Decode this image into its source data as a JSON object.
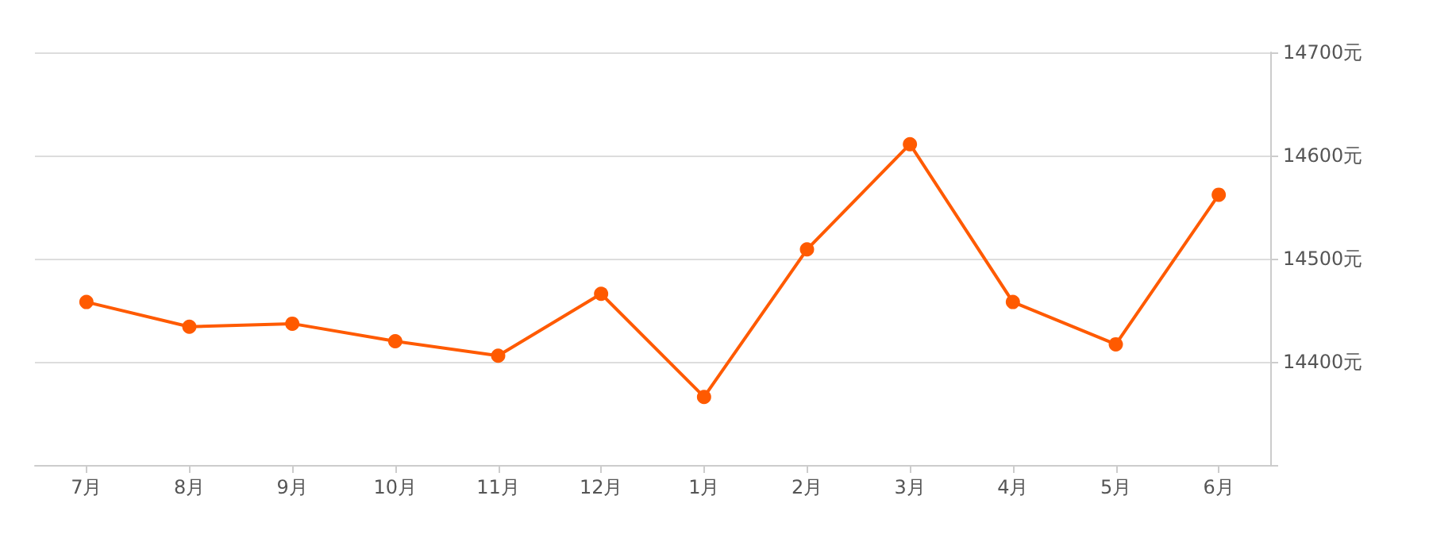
{
  "chart_data": {
    "type": "line",
    "categories": [
      "7月",
      "8月",
      "9月",
      "10月",
      "11月",
      "12月",
      "1月",
      "2月",
      "3月",
      "4月",
      "5月",
      "6月"
    ],
    "series": [
      {
        "color": "#ff5a00",
        "values": [
          14458,
          14434,
          14437,
          14420,
          14406,
          14466,
          14366,
          14509,
          14611,
          14458,
          14417,
          14562
        ]
      }
    ],
    "ylim": [
      14300,
      14700
    ],
    "yticks": [
      {
        "value": 14300,
        "label": null
      },
      {
        "value": 14400,
        "label": "14400元"
      },
      {
        "value": 14500,
        "label": "14500元"
      },
      {
        "value": 14600,
        "label": "14600元"
      },
      {
        "value": 14700,
        "label": "14700元"
      }
    ],
    "grid": "y",
    "marker": "circle",
    "line_style": "solid"
  }
}
